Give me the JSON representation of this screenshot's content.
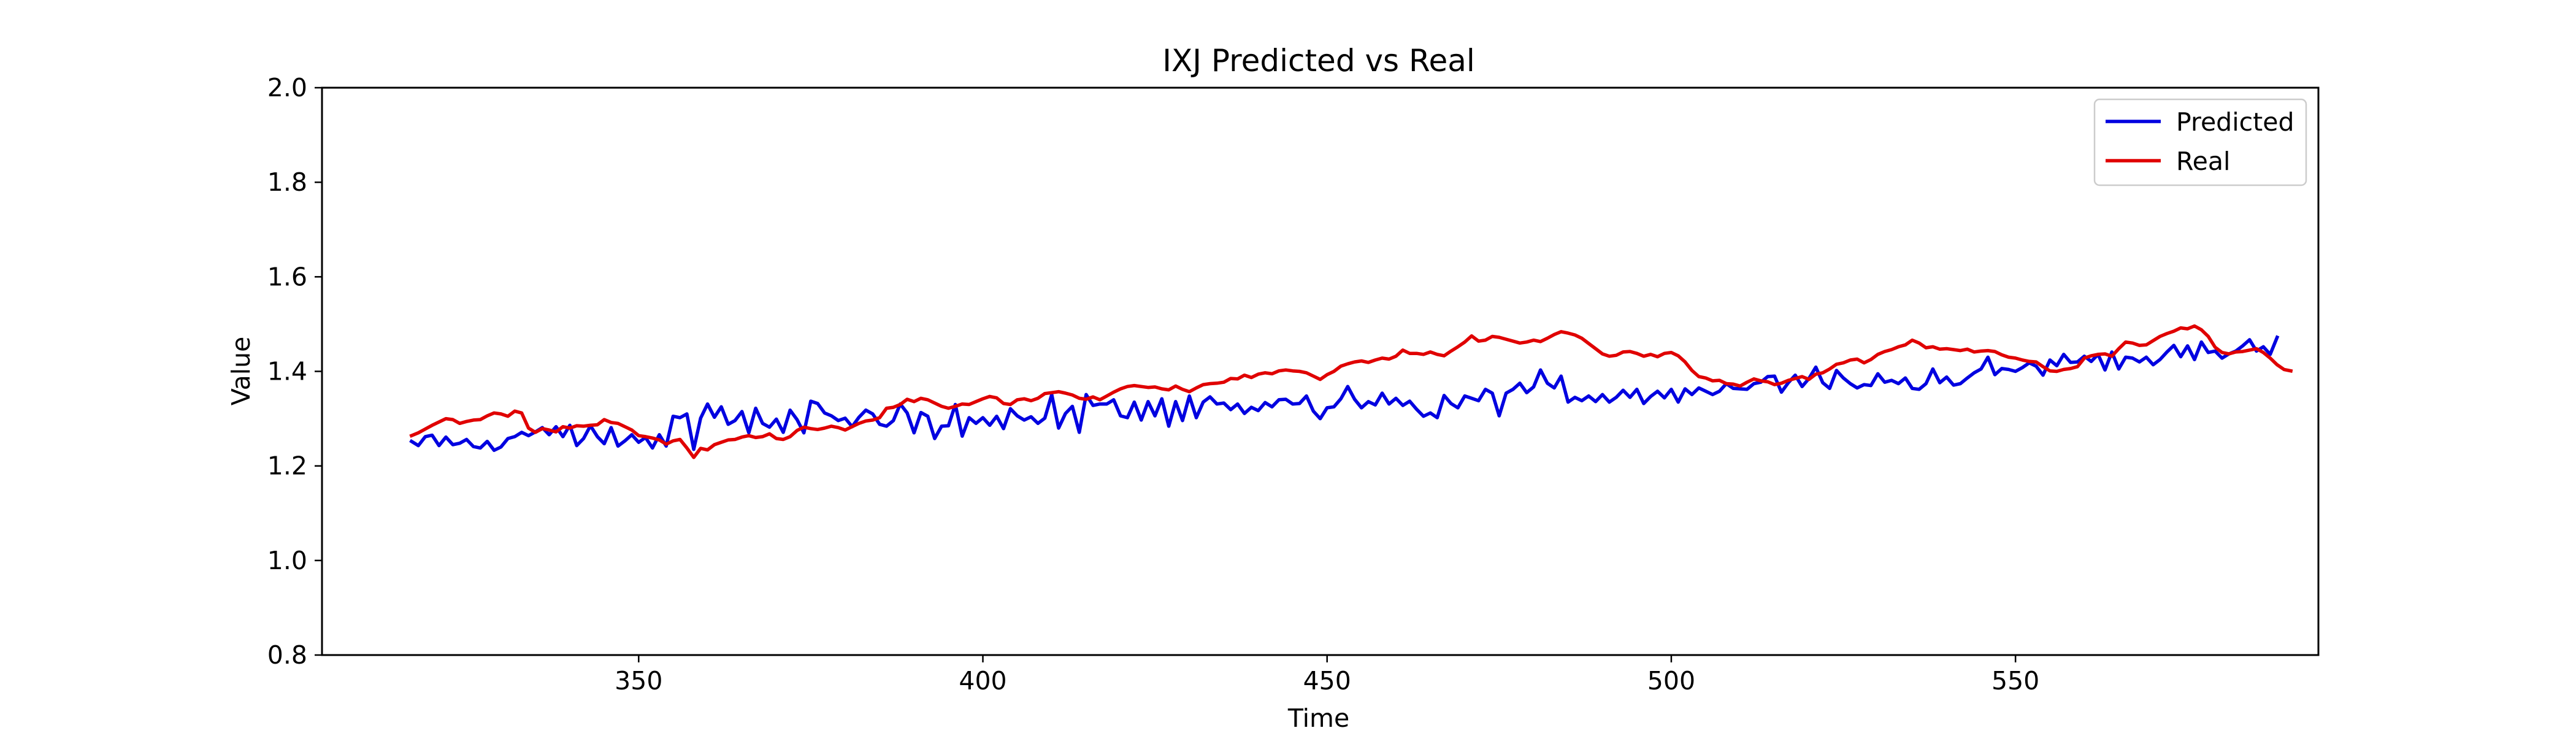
{
  "chart_data": {
    "type": "line",
    "title": "IXJ Predicted vs Real",
    "xlabel": "Time",
    "ylabel": "Value",
    "xlim": [
      304,
      594
    ],
    "ylim": [
      0.8,
      2.0
    ],
    "xticks": [
      350,
      400,
      450,
      500,
      550
    ],
    "yticks": [
      "0.8",
      "1.0",
      "1.2",
      "1.4",
      "1.6",
      "1.8",
      "2.0"
    ],
    "legend": "top-right",
    "grid": false,
    "series": [
      {
        "name": "Predicted",
        "color": "#0000e0",
        "x_start": 317,
        "values": [
          1.252,
          1.243,
          1.262,
          1.265,
          1.243,
          1.261,
          1.245,
          1.248,
          1.256,
          1.241,
          1.238,
          1.252,
          1.233,
          1.24,
          1.258,
          1.262,
          1.271,
          1.264,
          1.272,
          1.281,
          1.266,
          1.283,
          1.262,
          1.286,
          1.243,
          1.258,
          1.285,
          1.262,
          1.247,
          1.281,
          1.242,
          1.253,
          1.266,
          1.25,
          1.26,
          1.238,
          1.266,
          1.242,
          1.305,
          1.302,
          1.31,
          1.235,
          1.301,
          1.331,
          1.303,
          1.325,
          1.288,
          1.296,
          1.315,
          1.27,
          1.322,
          1.29,
          1.282,
          1.299,
          1.271,
          1.318,
          1.298,
          1.27,
          1.337,
          1.332,
          1.312,
          1.306,
          1.296,
          1.301,
          1.283,
          1.303,
          1.318,
          1.31,
          1.288,
          1.284,
          1.296,
          1.331,
          1.312,
          1.27,
          1.313,
          1.305,
          1.258,
          1.284,
          1.285,
          1.33,
          1.263,
          1.302,
          1.29,
          1.302,
          1.286,
          1.305,
          1.279,
          1.321,
          1.306,
          1.297,
          1.304,
          1.29,
          1.301,
          1.351,
          1.28,
          1.311,
          1.326,
          1.271,
          1.351,
          1.328,
          1.331,
          1.331,
          1.34,
          1.306,
          1.302,
          1.335,
          1.297,
          1.336,
          1.306,
          1.342,
          1.284,
          1.336,
          1.296,
          1.348,
          1.302,
          1.335,
          1.346,
          1.331,
          1.333,
          1.319,
          1.331,
          1.311,
          1.324,
          1.317,
          1.334,
          1.325,
          1.34,
          1.341,
          1.331,
          1.332,
          1.348,
          1.316,
          1.3,
          1.323,
          1.325,
          1.342,
          1.368,
          1.341,
          1.323,
          1.336,
          1.329,
          1.354,
          1.331,
          1.343,
          1.328,
          1.337,
          1.32,
          1.305,
          1.312,
          1.302,
          1.349,
          1.332,
          1.323,
          1.348,
          1.343,
          1.338,
          1.362,
          1.354,
          1.306,
          1.354,
          1.362,
          1.375,
          1.355,
          1.367,
          1.403,
          1.375,
          1.365,
          1.39,
          1.335,
          1.345,
          1.338,
          1.348,
          1.336,
          1.351,
          1.335,
          1.345,
          1.36,
          1.345,
          1.362,
          1.332,
          1.347,
          1.358,
          1.344,
          1.362,
          1.335,
          1.363,
          1.351,
          1.365,
          1.358,
          1.351,
          1.358,
          1.374,
          1.364,
          1.363,
          1.362,
          1.374,
          1.377,
          1.389,
          1.39,
          1.356,
          1.376,
          1.392,
          1.368,
          1.385,
          1.409,
          1.376,
          1.364,
          1.402,
          1.386,
          1.374,
          1.365,
          1.372,
          1.37,
          1.395,
          1.377,
          1.381,
          1.374,
          1.386,
          1.364,
          1.362,
          1.374,
          1.405,
          1.376,
          1.388,
          1.371,
          1.374,
          1.386,
          1.397,
          1.405,
          1.43,
          1.393,
          1.406,
          1.404,
          1.4,
          1.408,
          1.418,
          1.411,
          1.392,
          1.424,
          1.412,
          1.436,
          1.419,
          1.42,
          1.432,
          1.421,
          1.436,
          1.403,
          1.441,
          1.405,
          1.43,
          1.428,
          1.42,
          1.43,
          1.414,
          1.425,
          1.441,
          1.455,
          1.431,
          1.454,
          1.425,
          1.462,
          1.44,
          1.443,
          1.428,
          1.437,
          1.443,
          1.454,
          1.467,
          1.443,
          1.452,
          1.436,
          1.472
        ]
      },
      {
        "name": "Real",
        "color": "#e00000",
        "x_start": 317,
        "values": [
          1.264,
          1.27,
          1.278,
          1.286,
          1.293,
          1.3,
          1.298,
          1.29,
          1.294,
          1.297,
          1.298,
          1.306,
          1.312,
          1.31,
          1.305,
          1.316,
          1.312,
          1.28,
          1.271,
          1.279,
          1.276,
          1.272,
          1.283,
          1.28,
          1.285,
          1.284,
          1.286,
          1.287,
          1.298,
          1.292,
          1.29,
          1.283,
          1.276,
          1.264,
          1.262,
          1.259,
          1.255,
          1.246,
          1.253,
          1.256,
          1.238,
          1.218,
          1.237,
          1.234,
          1.245,
          1.25,
          1.255,
          1.256,
          1.261,
          1.264,
          1.26,
          1.262,
          1.268,
          1.258,
          1.256,
          1.262,
          1.275,
          1.282,
          1.279,
          1.277,
          1.28,
          1.284,
          1.281,
          1.276,
          1.283,
          1.29,
          1.295,
          1.297,
          1.302,
          1.322,
          1.324,
          1.33,
          1.341,
          1.336,
          1.343,
          1.34,
          1.333,
          1.326,
          1.322,
          1.326,
          1.331,
          1.33,
          1.336,
          1.342,
          1.347,
          1.344,
          1.332,
          1.33,
          1.34,
          1.342,
          1.338,
          1.343,
          1.353,
          1.355,
          1.357,
          1.354,
          1.35,
          1.343,
          1.341,
          1.346,
          1.34,
          1.348,
          1.356,
          1.363,
          1.368,
          1.37,
          1.368,
          1.366,
          1.367,
          1.363,
          1.361,
          1.369,
          1.362,
          1.357,
          1.365,
          1.372,
          1.374,
          1.375,
          1.377,
          1.385,
          1.384,
          1.392,
          1.387,
          1.394,
          1.397,
          1.395,
          1.401,
          1.403,
          1.401,
          1.4,
          1.397,
          1.39,
          1.383,
          1.393,
          1.4,
          1.411,
          1.416,
          1.42,
          1.422,
          1.419,
          1.424,
          1.428,
          1.426,
          1.432,
          1.445,
          1.438,
          1.438,
          1.436,
          1.441,
          1.436,
          1.433,
          1.443,
          1.452,
          1.462,
          1.475,
          1.464,
          1.466,
          1.474,
          1.472,
          1.468,
          1.464,
          1.46,
          1.462,
          1.466,
          1.463,
          1.47,
          1.478,
          1.484,
          1.481,
          1.477,
          1.47,
          1.459,
          1.448,
          1.437,
          1.432,
          1.434,
          1.441,
          1.442,
          1.438,
          1.432,
          1.436,
          1.431,
          1.438,
          1.44,
          1.433,
          1.42,
          1.402,
          1.389,
          1.386,
          1.38,
          1.381,
          1.374,
          1.373,
          1.369,
          1.377,
          1.384,
          1.38,
          1.378,
          1.372,
          1.375,
          1.381,
          1.385,
          1.389,
          1.383,
          1.394,
          1.397,
          1.405,
          1.415,
          1.418,
          1.424,
          1.426,
          1.418,
          1.425,
          1.436,
          1.442,
          1.446,
          1.452,
          1.456,
          1.466,
          1.46,
          1.45,
          1.452,
          1.447,
          1.448,
          1.446,
          1.444,
          1.447,
          1.441,
          1.443,
          1.444,
          1.442,
          1.435,
          1.43,
          1.428,
          1.424,
          1.421,
          1.42,
          1.41,
          1.401,
          1.4,
          1.404,
          1.406,
          1.41,
          1.428,
          1.433,
          1.436,
          1.437,
          1.432,
          1.448,
          1.462,
          1.46,
          1.455,
          1.456,
          1.465,
          1.474,
          1.48,
          1.485,
          1.492,
          1.49,
          1.496,
          1.488,
          1.474,
          1.451,
          1.44,
          1.437,
          1.441,
          1.442,
          1.445,
          1.448,
          1.44,
          1.428,
          1.414,
          1.404,
          1.401
        ]
      }
    ]
  }
}
